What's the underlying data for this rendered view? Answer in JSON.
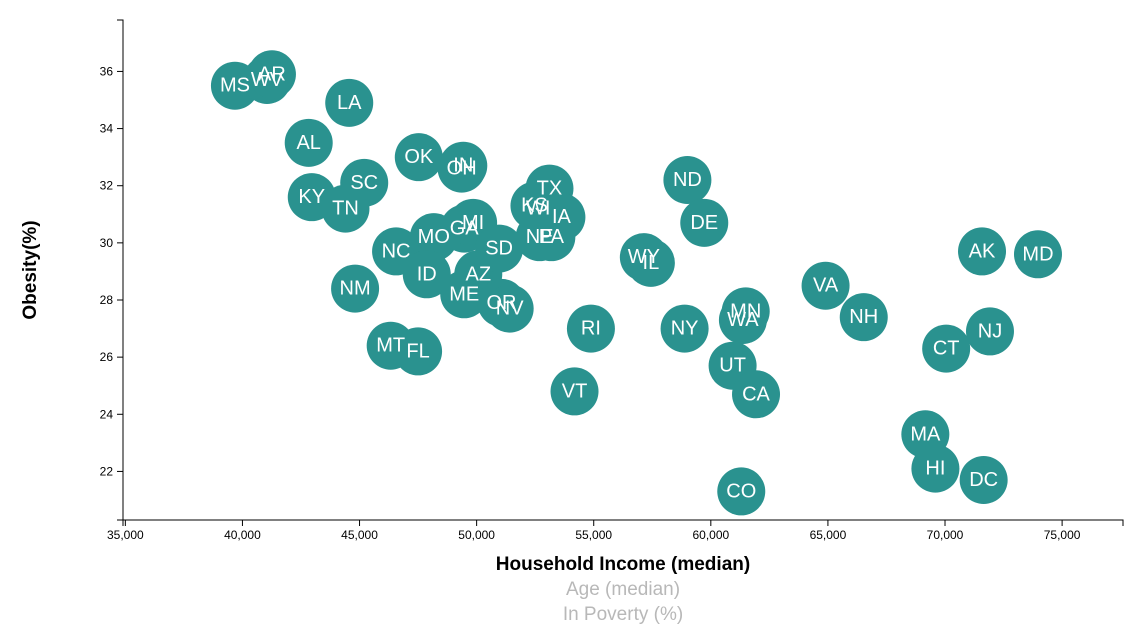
{
  "chart_data": {
    "type": "scatter",
    "xlabel": "Household Income (median)",
    "ylabel": "Obesity(%)",
    "x_axis_options": [
      {
        "label": "Household Income (median)",
        "active": true
      },
      {
        "label": "Age (median)",
        "active": false
      },
      {
        "label": "In Poverty (%)",
        "active": false
      }
    ],
    "xlim": [
      34900,
      77600
    ],
    "ylim": [
      20.3,
      37.8
    ],
    "x_ticks": [
      35000,
      40000,
      45000,
      50000,
      55000,
      60000,
      65000,
      70000,
      75000
    ],
    "x_tick_labels": [
      "35,000",
      "40,000",
      "45,000",
      "50,000",
      "55,000",
      "60,000",
      "65,000",
      "70,000",
      "75,000"
    ],
    "y_ticks": [
      22,
      24,
      26,
      28,
      30,
      32,
      34,
      36
    ],
    "y_tick_labels": [
      "22",
      "24",
      "26",
      "28",
      "30",
      "32",
      "34",
      "36"
    ],
    "grid": false,
    "marker_color": "#2a928f",
    "label_color": "#ffffff",
    "points": [
      {
        "label": "MS",
        "x": 39680,
        "y": 35.5
      },
      {
        "label": "WV",
        "x": 41050,
        "y": 35.7
      },
      {
        "label": "AR",
        "x": 41260,
        "y": 35.9
      },
      {
        "label": "LA",
        "x": 44560,
        "y": 34.9
      },
      {
        "label": "AL",
        "x": 42830,
        "y": 33.5
      },
      {
        "label": "KY",
        "x": 42960,
        "y": 31.6
      },
      {
        "label": "SC",
        "x": 45200,
        "y": 32.1
      },
      {
        "label": "TN",
        "x": 44400,
        "y": 31.2
      },
      {
        "label": "OK",
        "x": 47530,
        "y": 33.0
      },
      {
        "label": "IN",
        "x": 49430,
        "y": 32.7
      },
      {
        "label": "OH",
        "x": 49360,
        "y": 32.6
      },
      {
        "label": "NC",
        "x": 46560,
        "y": 29.7
      },
      {
        "label": "MO",
        "x": 48170,
        "y": 30.2
      },
      {
        "label": "GA",
        "x": 49470,
        "y": 30.5
      },
      {
        "label": "MI",
        "x": 49850,
        "y": 30.7
      },
      {
        "label": "ID",
        "x": 47870,
        "y": 28.9
      },
      {
        "label": "AZ",
        "x": 50070,
        "y": 28.9
      },
      {
        "label": "ME",
        "x": 49470,
        "y": 28.2
      },
      {
        "label": "OR",
        "x": 51060,
        "y": 27.9
      },
      {
        "label": "NV",
        "x": 51410,
        "y": 27.7
      },
      {
        "label": "SD",
        "x": 50960,
        "y": 29.8
      },
      {
        "label": "NM",
        "x": 44810,
        "y": 28.4
      },
      {
        "label": "MT",
        "x": 46330,
        "y": 26.4
      },
      {
        "label": "FL",
        "x": 47500,
        "y": 26.2
      },
      {
        "label": "TX",
        "x": 53110,
        "y": 31.9
      },
      {
        "label": "KS",
        "x": 52470,
        "y": 31.3
      },
      {
        "label": "WI",
        "x": 52630,
        "y": 31.2
      },
      {
        "label": "IA",
        "x": 53620,
        "y": 30.9
      },
      {
        "label": "NE",
        "x": 52690,
        "y": 30.2
      },
      {
        "label": "PA",
        "x": 53190,
        "y": 30.2
      },
      {
        "label": "RI",
        "x": 54880,
        "y": 27.0
      },
      {
        "label": "VT",
        "x": 54180,
        "y": 24.8
      },
      {
        "label": "WY",
        "x": 57140,
        "y": 29.5
      },
      {
        "label": "IL",
        "x": 57440,
        "y": 29.3
      },
      {
        "label": "ND",
        "x": 59000,
        "y": 32.2
      },
      {
        "label": "DE",
        "x": 59720,
        "y": 30.7
      },
      {
        "label": "NY",
        "x": 58880,
        "y": 27.0
      },
      {
        "label": "MN",
        "x": 61490,
        "y": 27.6
      },
      {
        "label": "WA",
        "x": 61370,
        "y": 27.3
      },
      {
        "label": "UT",
        "x": 60930,
        "y": 25.7
      },
      {
        "label": "CA",
        "x": 61930,
        "y": 24.7
      },
      {
        "label": "CO",
        "x": 61300,
        "y": 21.3
      },
      {
        "label": "VA",
        "x": 64900,
        "y": 28.5
      },
      {
        "label": "NH",
        "x": 66530,
        "y": 27.4
      },
      {
        "label": "MA",
        "x": 69160,
        "y": 23.3
      },
      {
        "label": "HI",
        "x": 69590,
        "y": 22.1
      },
      {
        "label": "CT",
        "x": 70050,
        "y": 26.3
      },
      {
        "label": "DC",
        "x": 71650,
        "y": 21.7
      },
      {
        "label": "AK",
        "x": 71580,
        "y": 29.7
      },
      {
        "label": "NJ",
        "x": 71920,
        "y": 26.9
      },
      {
        "label": "MD",
        "x": 73970,
        "y": 29.6
      }
    ]
  }
}
